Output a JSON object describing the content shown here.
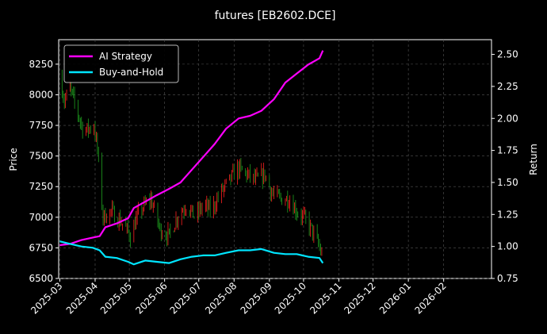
{
  "chart_data": {
    "type": "line",
    "title": "futures [EB2602.DCE]",
    "xlabel": "",
    "ylabel_left": "Price",
    "ylabel_right": "Return",
    "x_ticks": [
      "2025-03",
      "2025-04",
      "2025-05",
      "2025-06",
      "2025-07",
      "2025-08",
      "2025-09",
      "2025-10",
      "2025-11",
      "2025-12",
      "2026-01",
      "2026-02"
    ],
    "x_range": [
      "2025-02-28",
      "2026-03-15"
    ],
    "ylim_left": [
      6500,
      8450
    ],
    "y_ticks_left": [
      6500,
      6750,
      7000,
      7250,
      7500,
      7750,
      8000,
      8250
    ],
    "ylim_right": [
      0.75,
      2.615
    ],
    "y_ticks_right": [
      0.75,
      1.0,
      1.25,
      1.5,
      1.75,
      2.0,
      2.25,
      2.5
    ],
    "grid": true,
    "legend_position": "top-left",
    "colors": {
      "up": "#ff2020",
      "down": "#1fa01f",
      "ai": "#ff00ff",
      "bh": "#00e5ff",
      "background": "#000000",
      "grid": "#555555"
    },
    "series": [
      {
        "name": "AI Strategy",
        "points": [
          [
            "2025-03-01",
            1.01
          ],
          [
            "2025-03-10",
            1.02
          ],
          [
            "2025-03-20",
            1.05
          ],
          [
            "2025-03-30",
            1.07
          ],
          [
            "2025-04-05",
            1.08
          ],
          [
            "2025-04-10",
            1.15
          ],
          [
            "2025-04-20",
            1.18
          ],
          [
            "2025-04-30",
            1.22
          ],
          [
            "2025-05-05",
            1.3
          ],
          [
            "2025-05-15",
            1.35
          ],
          [
            "2025-05-25",
            1.4
          ],
          [
            "2025-06-05",
            1.45
          ],
          [
            "2025-06-15",
            1.5
          ],
          [
            "2025-06-25",
            1.6
          ],
          [
            "2025-07-05",
            1.7
          ],
          [
            "2025-07-15",
            1.8
          ],
          [
            "2025-07-25",
            1.92
          ],
          [
            "2025-08-05",
            2.0
          ],
          [
            "2025-08-15",
            2.02
          ],
          [
            "2025-08-25",
            2.06
          ],
          [
            "2025-09-05",
            2.15
          ],
          [
            "2025-09-15",
            2.28
          ],
          [
            "2025-09-25",
            2.35
          ],
          [
            "2025-10-05",
            2.42
          ],
          [
            "2025-10-15",
            2.47
          ],
          [
            "2025-10-18",
            2.53
          ]
        ]
      },
      {
        "name": "Buy-and-Hold",
        "points": [
          [
            "2025-03-01",
            1.04
          ],
          [
            "2025-03-10",
            1.02
          ],
          [
            "2025-03-20",
            1.0
          ],
          [
            "2025-03-30",
            0.99
          ],
          [
            "2025-04-05",
            0.97
          ],
          [
            "2025-04-10",
            0.92
          ],
          [
            "2025-04-20",
            0.91
          ],
          [
            "2025-04-30",
            0.88
          ],
          [
            "2025-05-05",
            0.86
          ],
          [
            "2025-05-15",
            0.89
          ],
          [
            "2025-05-25",
            0.88
          ],
          [
            "2025-06-05",
            0.87
          ],
          [
            "2025-06-15",
            0.9
          ],
          [
            "2025-06-25",
            0.92
          ],
          [
            "2025-07-05",
            0.93
          ],
          [
            "2025-07-15",
            0.93
          ],
          [
            "2025-07-25",
            0.95
          ],
          [
            "2025-08-05",
            0.97
          ],
          [
            "2025-08-15",
            0.97
          ],
          [
            "2025-08-25",
            0.98
          ],
          [
            "2025-09-05",
            0.95
          ],
          [
            "2025-09-15",
            0.94
          ],
          [
            "2025-09-25",
            0.94
          ],
          [
            "2025-10-05",
            0.92
          ],
          [
            "2025-10-15",
            0.91
          ],
          [
            "2025-10-18",
            0.87
          ]
        ]
      }
    ],
    "price_anchors": [
      [
        "2025-03-01",
        8150
      ],
      [
        "2025-03-05",
        7950
      ],
      [
        "2025-03-10",
        8050
      ],
      [
        "2025-03-15",
        7900
      ],
      [
        "2025-03-22",
        7700
      ],
      [
        "2025-03-31",
        7750
      ],
      [
        "2025-04-03",
        7550
      ],
      [
        "2025-04-08",
        7000
      ],
      [
        "2025-04-15",
        7050
      ],
      [
        "2025-04-25",
        6950
      ],
      [
        "2025-05-02",
        6850
      ],
      [
        "2025-05-10",
        7050
      ],
      [
        "2025-05-20",
        7150
      ],
      [
        "2025-05-28",
        6900
      ],
      [
        "2025-06-05",
        6850
      ],
      [
        "2025-06-12",
        7000
      ],
      [
        "2025-06-20",
        7100
      ],
      [
        "2025-06-28",
        7000
      ],
      [
        "2025-07-05",
        7100
      ],
      [
        "2025-07-12",
        7050
      ],
      [
        "2025-07-20",
        7200
      ],
      [
        "2025-07-28",
        7300
      ],
      [
        "2025-08-04",
        7400
      ],
      [
        "2025-08-12",
        7350
      ],
      [
        "2025-08-20",
        7300
      ],
      [
        "2025-08-28",
        7350
      ],
      [
        "2025-09-03",
        7200
      ],
      [
        "2025-09-10",
        7150
      ],
      [
        "2025-09-18",
        7150
      ],
      [
        "2025-09-25",
        7050
      ],
      [
        "2025-10-01",
        7000
      ],
      [
        "2025-10-08",
        6900
      ],
      [
        "2025-10-15",
        6750
      ],
      [
        "2025-10-18",
        6650
      ]
    ]
  }
}
